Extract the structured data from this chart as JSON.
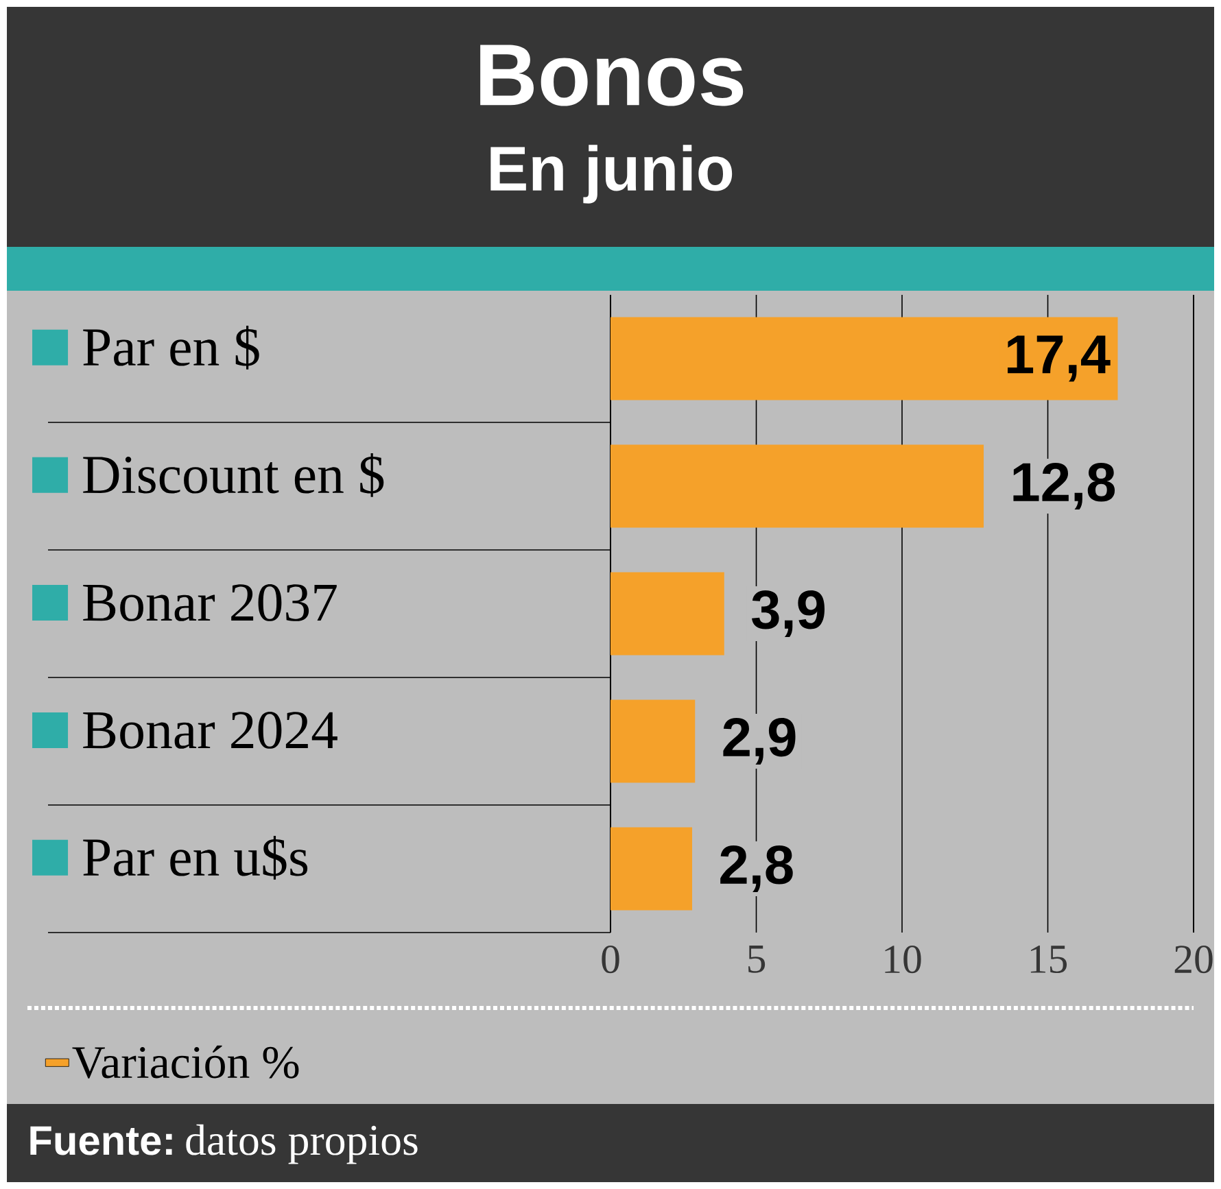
{
  "chart_data": {
    "type": "bar",
    "orientation": "horizontal",
    "title": "Bonos",
    "subtitle": "En junio",
    "categories": [
      "Par en $",
      "Discount en $",
      "Bonar 2037",
      "Bonar 2024",
      "Par en u$s"
    ],
    "series": [
      {
        "name": "Variación %",
        "color": "#f5a12a",
        "values": [
          17.4,
          12.8,
          3.9,
          2.9,
          2.8
        ],
        "value_labels": [
          "17,4",
          "12,8",
          "3,9",
          "2,9",
          "2,8"
        ]
      }
    ],
    "xlim": [
      0,
      20
    ],
    "xticks": [
      0,
      5,
      10,
      15,
      20
    ],
    "grid": "x",
    "legend": "bottom",
    "annotations": [
      "Fuente:",
      "datos propios"
    ]
  }
}
